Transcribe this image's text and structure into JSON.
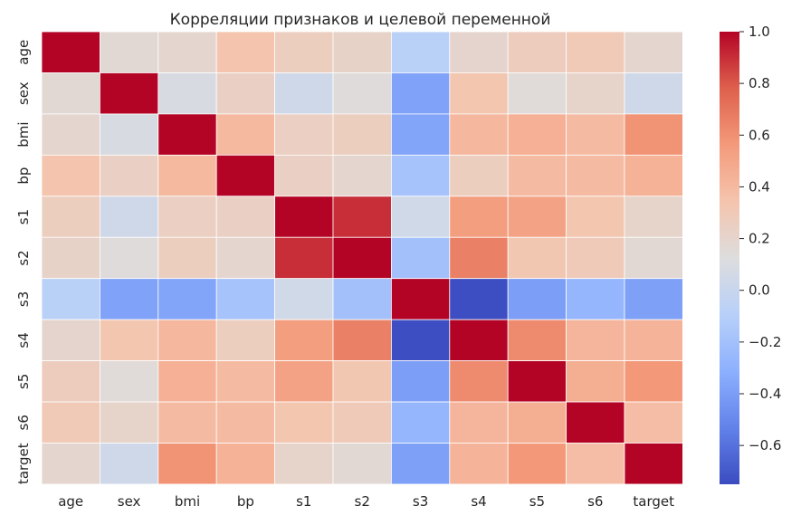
{
  "chart_data": {
    "type": "heatmap",
    "title": "Корреляции признаков и целевой переменной",
    "x_labels": [
      "age",
      "sex",
      "bmi",
      "bp",
      "s1",
      "s2",
      "s3",
      "s4",
      "s5",
      "s6",
      "target"
    ],
    "y_labels": [
      "age",
      "sex",
      "bmi",
      "bp",
      "s1",
      "s2",
      "s3",
      "s4",
      "s5",
      "s6",
      "target"
    ],
    "matrix": [
      [
        1.0,
        0.17,
        0.19,
        0.34,
        0.26,
        0.22,
        -0.08,
        0.2,
        0.27,
        0.3,
        0.19
      ],
      [
        0.17,
        1.0,
        0.09,
        0.24,
        0.04,
        0.14,
        -0.38,
        0.33,
        0.15,
        0.21,
        0.04
      ],
      [
        0.19,
        0.09,
        1.0,
        0.4,
        0.25,
        0.26,
        -0.37,
        0.41,
        0.45,
        0.39,
        0.59
      ],
      [
        0.34,
        0.24,
        0.4,
        1.0,
        0.24,
        0.19,
        -0.18,
        0.26,
        0.39,
        0.39,
        0.44
      ],
      [
        0.26,
        0.04,
        0.25,
        0.24,
        1.0,
        0.9,
        0.05,
        0.54,
        0.52,
        0.33,
        0.21
      ],
      [
        0.22,
        0.14,
        0.26,
        0.19,
        0.9,
        1.0,
        -0.2,
        0.66,
        0.32,
        0.29,
        0.17
      ],
      [
        -0.08,
        -0.38,
        -0.37,
        -0.18,
        0.05,
        -0.2,
        1.0,
        -0.74,
        -0.4,
        -0.27,
        -0.39
      ],
      [
        0.2,
        0.33,
        0.41,
        0.26,
        0.54,
        0.66,
        -0.74,
        1.0,
        0.62,
        0.42,
        0.43
      ],
      [
        0.27,
        0.15,
        0.45,
        0.39,
        0.52,
        0.32,
        -0.4,
        0.62,
        1.0,
        0.46,
        0.57
      ],
      [
        0.3,
        0.21,
        0.39,
        0.39,
        0.33,
        0.29,
        -0.27,
        0.42,
        0.46,
        1.0,
        0.38
      ],
      [
        0.19,
        0.04,
        0.59,
        0.44,
        0.21,
        0.17,
        -0.39,
        0.43,
        0.57,
        0.38,
        1.0
      ]
    ],
    "colormap": "coolwarm",
    "vmin": -0.75,
    "vmax": 1.0,
    "colorbar": {
      "ticks": [
        -0.6,
        -0.4,
        -0.2,
        0.0,
        0.2,
        0.4,
        0.6,
        0.8,
        1.0
      ],
      "tick_labels": [
        "−0.6",
        "−0.4",
        "−0.2",
        "0.0",
        "0.2",
        "0.4",
        "0.6",
        "0.8",
        "1.0"
      ]
    },
    "xlabel": "",
    "ylabel": "",
    "cell_border_color": "#ffffff"
  }
}
